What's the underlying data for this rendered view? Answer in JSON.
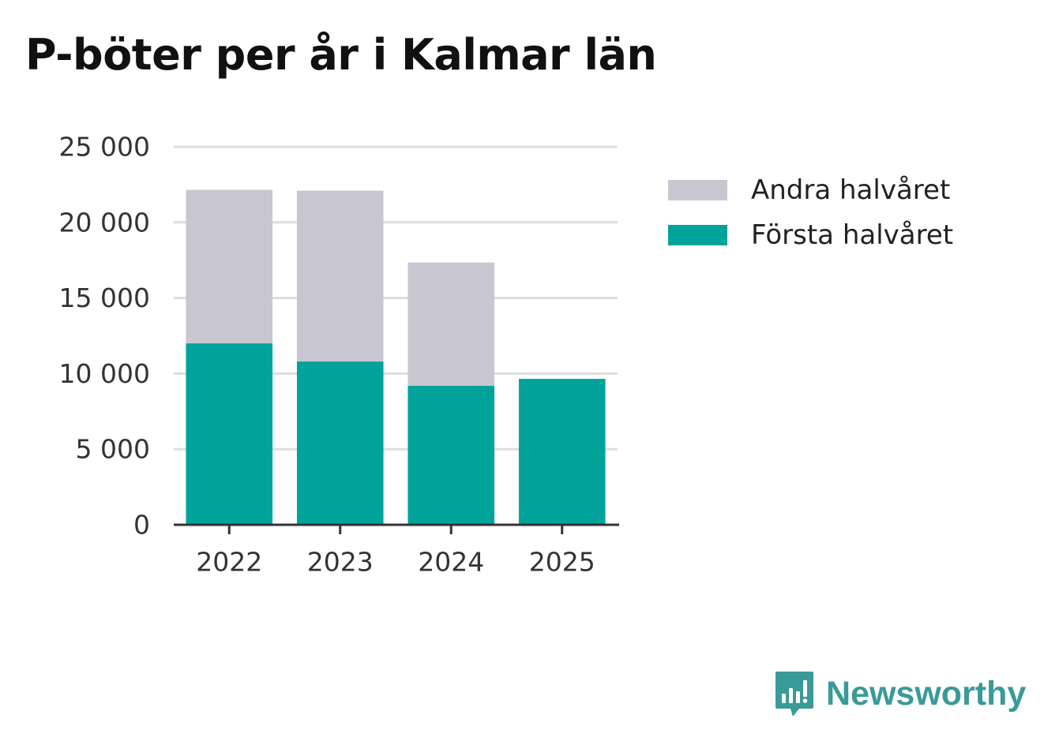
{
  "chart_data": {
    "type": "bar",
    "stacked": true,
    "title": "P-böter per år i Kalmar län",
    "xlabel": "",
    "ylabel": "",
    "categories": [
      "2022",
      "2023",
      "2024",
      "2025"
    ],
    "series": [
      {
        "name": "Första halvåret",
        "color": "#00a39a",
        "values": [
          12000,
          10800,
          9200,
          9650
        ]
      },
      {
        "name": "Andra halvåret",
        "color": "#c8c7d1",
        "values": [
          10150,
          11300,
          8150,
          0
        ]
      }
    ],
    "ylim": [
      0,
      25000
    ],
    "yticks": [
      0,
      5000,
      10000,
      15000,
      20000,
      25000
    ],
    "ytick_labels": [
      "0",
      "5 000",
      "10 000",
      "15 000",
      "20 000",
      "25 000"
    ],
    "grid": true,
    "legend": {
      "position": "right",
      "entries": [
        {
          "label": "Andra halvåret",
          "color": "#c8c7d1"
        },
        {
          "label": "Första halvåret",
          "color": "#00a39a"
        }
      ]
    }
  },
  "brand": {
    "name": "Newsworthy",
    "color": "#3a9a98",
    "icon": "bar-chart-speech-bubble-icon"
  }
}
